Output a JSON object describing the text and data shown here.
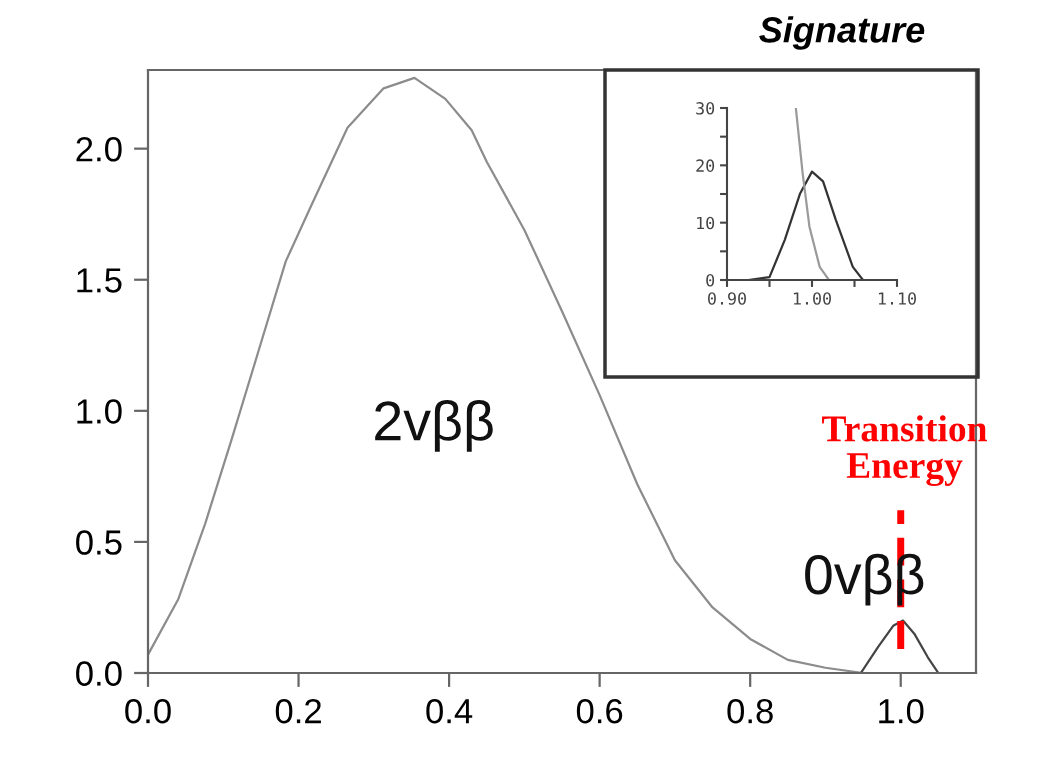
{
  "chart_data": [
    {
      "type": "line",
      "xlim": [
        0,
        1.1
      ],
      "ylim": [
        0,
        2.3
      ],
      "xticks": [
        {
          "value": 0,
          "label": "0.0"
        },
        0.2,
        0.4,
        0.6,
        0.8,
        {
          "value": 1,
          "label": "1.0"
        }
      ],
      "yticks": [
        {
          "value": 0,
          "label": "0.0"
        },
        0.5,
        {
          "value": 1,
          "label": "1.0"
        },
        1.5,
        {
          "value": 2,
          "label": "2.0"
        }
      ],
      "grid": false,
      "series": [
        {
          "color": "#8c8c8c",
          "x": [
            0,
            0.04,
            0.076,
            0.111,
            0.147,
            0.183,
            0.218,
            0.265,
            0.313,
            0.354,
            0.395,
            0.43,
            0.45,
            0.5,
            0.55,
            0.6,
            0.65,
            0.7,
            0.75,
            0.8,
            0.85,
            0.9,
            0.95,
            1.0,
            1.07
          ],
          "values": [
            0.07,
            0.28,
            0.57,
            0.89,
            1.23,
            1.57,
            1.79,
            2.08,
            2.23,
            2.27,
            2.19,
            2.07,
            1.95,
            1.69,
            1.38,
            1.06,
            0.72,
            0.43,
            0.25,
            0.13,
            0.05,
            0.02,
            0.0,
            0.0,
            0.0
          ]
        },
        {
          "color": "#444444",
          "x": [
            0.947,
            0.97,
            0.99,
            1.003,
            1.018,
            1.036,
            1.05,
            1.07
          ],
          "values": [
            0.0,
            0.1,
            0.18,
            0.2,
            0.15,
            0.06,
            0.0,
            0.0
          ]
        }
      ],
      "ref_lines": [
        {
          "axis": "x",
          "value": 1.0,
          "label": "Transition\nEnergy",
          "color": "#ff0000",
          "line_style": "dashed"
        }
      ],
      "annotations": [
        "2vββ",
        "0vββ"
      ]
    },
    {
      "type": "line",
      "title": "Signature",
      "xlim": [
        0.9,
        1.1
      ],
      "ylim": [
        0,
        30
      ],
      "xticks": [
        {
          "value": 0.9,
          "label": "0.90"
        },
        {
          "value": 0.95,
          "label": null
        },
        {
          "value": 1.0,
          "label": "1.00"
        },
        {
          "value": 1.05,
          "label": null
        },
        {
          "value": 1.1,
          "label": "1.10"
        }
      ],
      "yticks": [
        0,
        {
          "value": 5,
          "label": null
        },
        10,
        {
          "value": 15,
          "label": null
        },
        20,
        {
          "value": 25,
          "label": null
        },
        30
      ],
      "grid": false,
      "series": [
        {
          "color": "#333333",
          "x": [
            0.925,
            0.95,
            0.968,
            0.986,
            1.0,
            1.013,
            1.028,
            1.048,
            1.06
          ],
          "values": [
            0,
            0.5,
            7.0,
            15.1,
            18.9,
            17.2,
            10.5,
            2.3,
            0
          ]
        },
        {
          "color": "#9a9a9a",
          "x": [
            0.981,
            0.989,
            0.997,
            1.009,
            1.02
          ],
          "values": [
            30,
            18.6,
            9.3,
            2.3,
            0
          ]
        }
      ]
    }
  ]
}
